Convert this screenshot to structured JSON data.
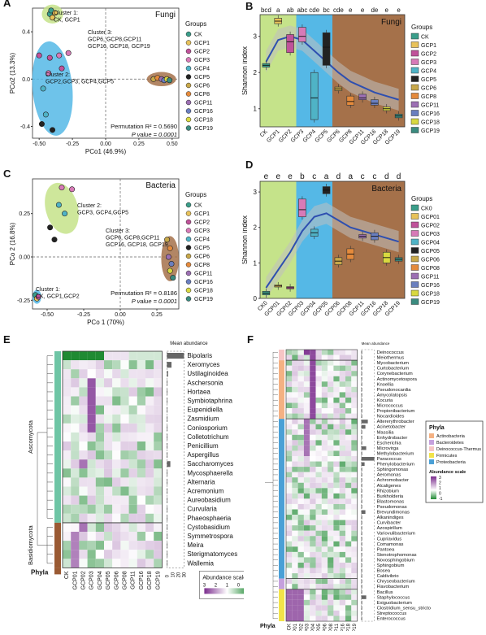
{
  "panels": {
    "A": {
      "label": "A",
      "title": "Fungi",
      "xlabel": "PCo1 (46.9%)",
      "ylabel": "PCo2 (13.3%)",
      "perm": "Permutation R² = 0.5690",
      "pval": "P value = 0.0001",
      "clusters": [
        {
          "name": "c1",
          "lines": [
            "Cluster 1:",
            "CK, GCP1"
          ]
        },
        {
          "name": "c3",
          "lines": [
            "Cluster 3:",
            "GCP6, GCP8,GCP11",
            "GCP16, GCP18, GCP19"
          ]
        },
        {
          "name": "c2",
          "lines": [
            "Cluster 2:",
            "GCP2,GCP3, GCP4,GCP5"
          ]
        }
      ],
      "legend_title": "Groups",
      "groups": [
        "CK",
        "GCP1",
        "GCP2",
        "GCP3",
        "GCP4",
        "GCP5",
        "GCP6",
        "GCP8",
        "GCP11",
        "GCP16",
        "GCP18",
        "GCP19"
      ],
      "xticks": [
        "-0.50",
        "-0.25",
        "0.00",
        "0.25",
        "0.50"
      ],
      "yticks": [
        "0.4",
        "0.0",
        "-0.4"
      ]
    },
    "B": {
      "label": "B",
      "title": "Fungi",
      "ylabel": "Shannon index",
      "letters": [
        "bcd",
        "a",
        "ab",
        "abc",
        "cde",
        "bc",
        "cde",
        "e",
        "e",
        "de",
        "e",
        "e"
      ],
      "yticks": [
        "1",
        "2",
        "3"
      ],
      "legend_title": "Groups",
      "groups": [
        "CK",
        "GCP1",
        "GCP2",
        "GCP3",
        "GCP4",
        "GCP5",
        "GCP6",
        "GCP8",
        "GCP11",
        "GCP16",
        "GCP18",
        "GCP19"
      ]
    },
    "C": {
      "label": "C",
      "title": "Bacteria",
      "xlabel": "PCo 1 (70%)",
      "ylabel": "PCo 2 (16.8%)",
      "perm": "Permutation R² = 0.8186",
      "pval": "P value = 0.0001",
      "clusters": [
        {
          "name": "c2",
          "lines": [
            "Cluster 2:",
            "GCP3, GCP4,GCP5"
          ]
        },
        {
          "name": "c3",
          "lines": [
            "Cluster 3:",
            "GCP6, GCP8,GCP11",
            "GCP16, GCP18, GCP19"
          ]
        },
        {
          "name": "c1",
          "lines": [
            "Cluster 1:",
            "CK, GCP1,GCP2"
          ]
        }
      ],
      "legend_title": "Groups",
      "groups": [
        "CK",
        "GCP1",
        "GCP2",
        "GCP3",
        "GCP4",
        "GCP5",
        "GCP6",
        "GCP8",
        "GCP11",
        "GCP16",
        "GCP18",
        "GCP19"
      ],
      "xticks": [
        "-0.50",
        "-0.25",
        "0.00",
        "0.25"
      ],
      "yticks": [
        "0.25",
        "0.00",
        "-0.25"
      ]
    },
    "D": {
      "label": "D",
      "title": "Bacteria",
      "ylabel": "Shannon index",
      "letters": [
        "e",
        "e",
        "e",
        "b",
        "c",
        "a",
        "d",
        "a",
        "c",
        "c",
        "d",
        "d"
      ],
      "yticks": [
        "0",
        "1",
        "2",
        "3"
      ],
      "legend_title": "Groups",
      "groups": [
        "CK0",
        "GCP01",
        "GCP02",
        "GCP03",
        "GCP04",
        "GCP05",
        "GCP06",
        "GCP08",
        "GCP11",
        "GCP16",
        "GCP18",
        "GCP19"
      ]
    },
    "E": {
      "label": "E",
      "phyla_label": "Phyla",
      "mean_label": "Mean abundance",
      "phyla": [
        "Ascomycota",
        "Basidiomycota"
      ],
      "genera": [
        "Bipolaris",
        "Xeromyces",
        "Ustilaginoidea",
        "Aschersonia",
        "Hortaea",
        "Symbiotaphrina",
        "Eupenidiella",
        "Zasmidium",
        "Coniosporium",
        "Colletotrichum",
        "Penicillium",
        "Aspergillus",
        "Saccharomyces",
        "Mycosphaerella",
        "Alternaria",
        "Acremonium",
        "Aureobasidium",
        "Curvularia",
        "Phaeosphaeria",
        "Cystobasidium",
        "Symmetrospora",
        "Meira",
        "Sterigmatomyces",
        "Wallemia"
      ],
      "cols": [
        "CK",
        "GCP01",
        "GCP02",
        "GCP03",
        "GCP04",
        "GCP05",
        "GCP06",
        "GCP08",
        "GCP11",
        "GCP16",
        "GCP18",
        "GCP19"
      ],
      "mean_ticks": [
        "0",
        "10",
        "20",
        "30"
      ],
      "scale_title": "Abundance scale",
      "scale_ticks": [
        "3",
        "2",
        "1",
        "0",
        "-1"
      ]
    },
    "F": {
      "label": "F",
      "phyla_label": "Phyla",
      "mean_label": "Mean abundance",
      "genera": [
        "Deinococcus",
        "Meiothermus",
        "Mycobacterium",
        "Curtobacterium",
        "Corynebacterium",
        "Actinomycetospora",
        "Knoellia",
        "Pseudonocardia",
        "Amycolatopsis",
        "Kocuria",
        "Micrococcus",
        "Propionibacterium",
        "Nocardioides",
        "Altererythrobacter",
        "Acinetobacter",
        "Massilia",
        "Enhydrobacter",
        "Escherichia",
        "Microvirga",
        "Methylobacterium",
        "Paracoccus",
        "Phenylobacterium",
        "Sphingomonas",
        "Aeromonas",
        "Achromobacter",
        "Alcaligenes",
        "Rhizobium",
        "Burkholderia",
        "Blastomonas",
        "Pseudomonas",
        "Brevundimonas",
        "Alkanindiges",
        "Curvibacter",
        "Azospirillum",
        "Variovulibacterium",
        "Cupriavidus",
        "Comamonas",
        "Pantoea",
        "Stenotrophomonas",
        "Novosphingobium",
        "Sphingobium",
        "Bosea",
        "Caldivibrio",
        "Chryseobacterium",
        "Flavobacterium",
        "Bacillus",
        "Staphylococcus",
        "Exiguobacterium",
        "Clostridium_sensu_stricto",
        "Streptococcus",
        "Enterococcus"
      ],
      "cols": [
        "CK",
        "GCP01",
        "GCP02",
        "GCP03",
        "GCP04",
        "GCP05",
        "GCP06",
        "GCP08",
        "GCP11",
        "GCP16",
        "GCP18",
        "GCP19"
      ],
      "legend_title": "Phyla",
      "phyla": [
        "Actinobacteria",
        "Bacteroidetes",
        "Deinococcus-Thermus",
        "Firmicutes",
        "Proteobacteria"
      ],
      "scale_title": "Abundance scale",
      "scale_ticks": [
        "3",
        "2",
        "1",
        "0",
        "-1"
      ]
    }
  },
  "colors": {
    "groups": [
      "#3a9e8a",
      "#e8c25a",
      "#c0529a",
      "#d77ab7",
      "#4fb3c6",
      "#222222",
      "#c8a84a",
      "#e48a3c",
      "#9c6fb3",
      "#6a7fbf",
      "#d8d840",
      "#3b8b7f"
    ],
    "cluster_green": "#c5e38a",
    "cluster_blue": "#55b8e6",
    "cluster_brown": "#a5714a",
    "phyla_asco": "#6ec5a5",
    "phyla_basidio": "#9a5a33",
    "bact_phyla": [
      "#f4b183",
      "#c5a0dd",
      "#f6c5c5",
      "#f2e34a",
      "#4aa0d6"
    ],
    "heat_low": "#1f8a33",
    "heat_mid": "#ffffff",
    "heat_high": "#7b2d8e"
  },
  "chart_data": [
    {
      "type": "scatter",
      "panel": "A",
      "title": "Fungi",
      "xlabel": "PCo1 (46.9%)",
      "ylabel": "PCo2 (13.3%)",
      "xlim": [
        -0.55,
        0.55
      ],
      "ylim": [
        -0.5,
        0.6
      ],
      "points": [
        {
          "g": "CK",
          "x": -0.42,
          "y": 0.55
        },
        {
          "g": "CK",
          "x": -0.41,
          "y": 0.58
        },
        {
          "g": "GCP1",
          "x": -0.4,
          "y": 0.52
        },
        {
          "g": "GCP1",
          "x": -0.38,
          "y": 0.56
        },
        {
          "g": "GCP2",
          "x": -0.5,
          "y": 0.2
        },
        {
          "g": "GCP2",
          "x": -0.42,
          "y": 0.18
        },
        {
          "g": "GCP3",
          "x": -0.35,
          "y": 0.2
        },
        {
          "g": "GCP3",
          "x": -0.28,
          "y": 0.22
        },
        {
          "g": "GCP4",
          "x": -0.47,
          "y": -0.08
        },
        {
          "g": "GCP4",
          "x": -0.45,
          "y": -0.3
        },
        {
          "g": "GCP5",
          "x": -0.48,
          "y": -0.38
        },
        {
          "g": "GCP5",
          "x": -0.4,
          "y": -0.43
        },
        {
          "g": "GCP3",
          "x": -0.43,
          "y": 0.05
        },
        {
          "g": "GCP2",
          "x": -0.33,
          "y": 0.09
        },
        {
          "g": "GCP6",
          "x": 0.36,
          "y": 0.0
        },
        {
          "g": "GCP8",
          "x": 0.39,
          "y": 0.01
        },
        {
          "g": "GCP11",
          "x": 0.42,
          "y": 0.0
        },
        {
          "g": "GCP16",
          "x": 0.44,
          "y": -0.01
        },
        {
          "g": "GCP18",
          "x": 0.46,
          "y": 0.0
        },
        {
          "g": "GCP19",
          "x": 0.48,
          "y": -0.01
        }
      ]
    },
    {
      "type": "box",
      "panel": "B",
      "title": "Fungi",
      "ylabel": "Shannon index",
      "ylim": [
        0.5,
        3.6
      ],
      "categories": [
        "CK",
        "GCP1",
        "GCP2",
        "GCP3",
        "GCP4",
        "GCP5",
        "GCP6",
        "GCP8",
        "GCP11",
        "GCP16",
        "GCP18",
        "GCP19"
      ],
      "box": [
        [
          2.15,
          2.2,
          2.25
        ],
        [
          3.35,
          3.42,
          3.5
        ],
        [
          2.55,
          2.85,
          3.05
        ],
        [
          2.85,
          3.0,
          3.25
        ],
        [
          0.7,
          1.3,
          2.0
        ],
        [
          2.2,
          2.7,
          3.1
        ],
        [
          1.5,
          1.55,
          1.6
        ],
        [
          1.1,
          1.2,
          1.35
        ],
        [
          1.25,
          1.3,
          1.4
        ],
        [
          1.1,
          1.15,
          1.25
        ],
        [
          0.95,
          1.0,
          1.05
        ],
        [
          0.75,
          0.8,
          0.85
        ]
      ],
      "trend": [
        2.3,
        2.9,
        3.0,
        2.9,
        2.6,
        2.3,
        2.0,
        1.75,
        1.6,
        1.45,
        1.35,
        1.25
      ]
    },
    {
      "type": "scatter",
      "panel": "C",
      "title": "Bacteria",
      "xlabel": "PCo 1 (70%)",
      "ylabel": "PCo 2 (16.8%)",
      "xlim": [
        -0.6,
        0.4
      ],
      "ylim": [
        -0.3,
        0.45
      ],
      "points": [
        {
          "g": "CK",
          "x": -0.58,
          "y": -0.22
        },
        {
          "g": "GCP1",
          "x": -0.57,
          "y": -0.24
        },
        {
          "g": "GCP2",
          "x": -0.56,
          "y": -0.23
        },
        {
          "g": "GCP3",
          "x": -0.4,
          "y": 0.4
        },
        {
          "g": "GCP3",
          "x": -0.33,
          "y": 0.39
        },
        {
          "g": "GCP4",
          "x": -0.42,
          "y": 0.3
        },
        {
          "g": "GCP4",
          "x": -0.38,
          "y": 0.25
        },
        {
          "g": "GCP5",
          "x": -0.48,
          "y": 0.17
        },
        {
          "g": "GCP5",
          "x": -0.45,
          "y": 0.1
        },
        {
          "g": "GCP6",
          "x": 0.32,
          "y": 0.1
        },
        {
          "g": "GCP8",
          "x": 0.34,
          "y": 0.05
        },
        {
          "g": "GCP11",
          "x": 0.33,
          "y": 0.0
        },
        {
          "g": "GCP16",
          "x": 0.35,
          "y": -0.04
        },
        {
          "g": "GCP18",
          "x": 0.34,
          "y": -0.08
        },
        {
          "g": "GCP19",
          "x": 0.36,
          "y": -0.12
        }
      ]
    },
    {
      "type": "box",
      "panel": "D",
      "title": "Bacteria",
      "ylabel": "Shannon index",
      "ylim": [
        0,
        3.3
      ],
      "categories": [
        "CK0",
        "GCP01",
        "GCP02",
        "GCP03",
        "GCP04",
        "GCP05",
        "GCP06",
        "GCP08",
        "GCP11",
        "GCP16",
        "GCP18",
        "GCP19"
      ],
      "box": [
        [
          0.1,
          0.15,
          0.2
        ],
        [
          0.32,
          0.35,
          0.38
        ],
        [
          0.27,
          0.3,
          0.33
        ],
        [
          2.3,
          2.5,
          2.8
        ],
        [
          1.75,
          1.85,
          1.95
        ],
        [
          2.95,
          3.05,
          3.15
        ],
        [
          0.95,
          1.05,
          1.15
        ],
        [
          1.1,
          1.25,
          1.4
        ],
        [
          1.7,
          1.75,
          1.8
        ],
        [
          1.65,
          1.75,
          1.85
        ],
        [
          1.0,
          1.15,
          1.3
        ],
        [
          1.05,
          1.1,
          1.15
        ]
      ],
      "trend": [
        0.3,
        0.8,
        1.3,
        1.9,
        2.3,
        2.4,
        2.2,
        2.0,
        1.9,
        1.8,
        1.7,
        1.6
      ]
    }
  ]
}
